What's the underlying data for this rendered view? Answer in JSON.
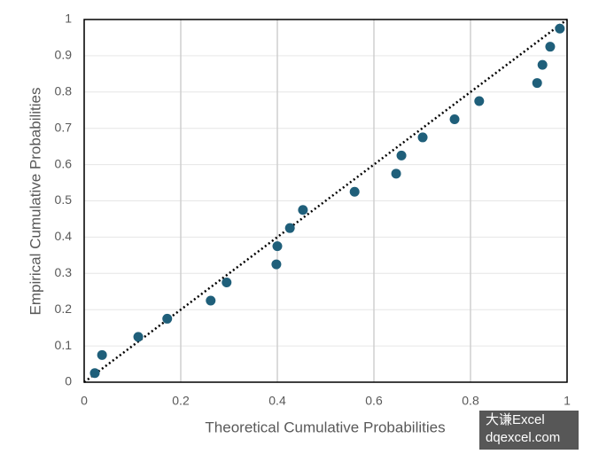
{
  "chart_data": {
    "type": "scatter",
    "x_label": "Theoretical Cumulative Probabilities",
    "y_label": "Empirical Cumulative Probabilities",
    "color": "#1f5f7a",
    "x": [
      0.022,
      0.037,
      0.112,
      0.172,
      0.262,
      0.295,
      0.398,
      0.4,
      0.426,
      0.453,
      0.56,
      0.646,
      0.657,
      0.701,
      0.767,
      0.818,
      0.938,
      0.949,
      0.965,
      0.985
    ],
    "values": [
      0.025,
      0.075,
      0.125,
      0.175,
      0.225,
      0.275,
      0.325,
      0.375,
      0.425,
      0.475,
      0.525,
      0.575,
      0.625,
      0.675,
      0.725,
      0.775,
      0.825,
      0.875,
      0.925,
      0.975
    ],
    "xlim": [
      0,
      1
    ],
    "ylim": [
      0,
      1
    ],
    "xticks": [
      0,
      0.2,
      0.4,
      0.6,
      0.8,
      1
    ],
    "yticks": [
      0,
      0.1,
      0.2,
      0.3,
      0.4,
      0.5,
      0.6,
      0.7,
      0.8,
      0.9,
      1
    ],
    "grid": true,
    "watermark": [
      "大谦Excel",
      "dqexcel.com"
    ]
  }
}
